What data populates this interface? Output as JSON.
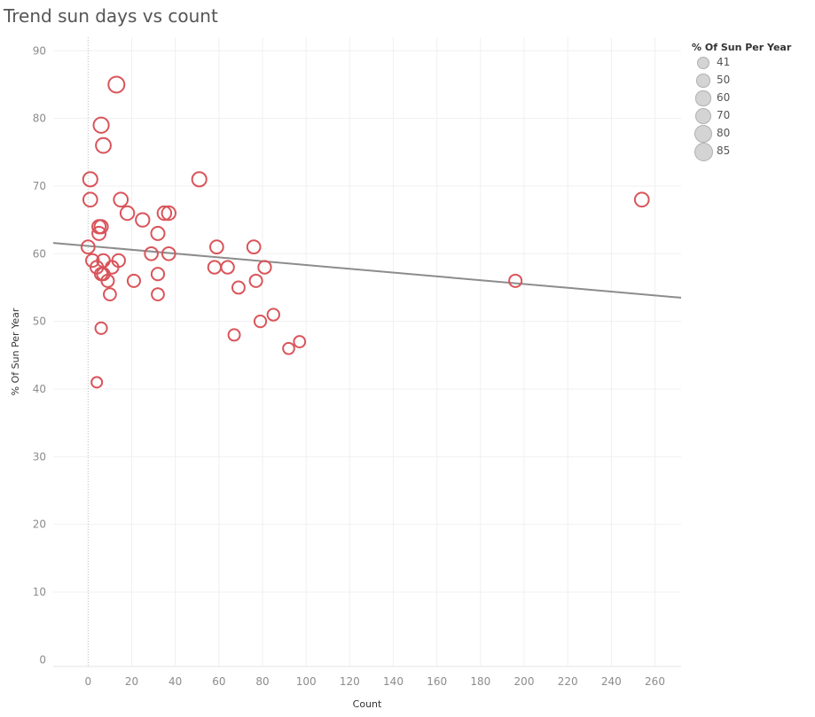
{
  "title": "Trend sun days vs count",
  "chart_data": {
    "type": "scatter",
    "title": "Trend sun days vs count",
    "xlabel": "Count",
    "ylabel": "% Of Sun Per Year",
    "xlim": [
      -16,
      272
    ],
    "ylim": [
      -1,
      92
    ],
    "xticks": [
      0,
      20,
      40,
      60,
      80,
      100,
      120,
      140,
      160,
      180,
      200,
      220,
      240,
      260
    ],
    "yticks": [
      0,
      10,
      20,
      30,
      40,
      50,
      60,
      70,
      80,
      90
    ],
    "grid": true,
    "legend_position": "top-right",
    "points": [
      {
        "x": 13,
        "y": 85
      },
      {
        "x": 6,
        "y": 79
      },
      {
        "x": 7,
        "y": 76
      },
      {
        "x": 1,
        "y": 71
      },
      {
        "x": 51,
        "y": 71
      },
      {
        "x": 1,
        "y": 68
      },
      {
        "x": 15,
        "y": 68
      },
      {
        "x": 254,
        "y": 68
      },
      {
        "x": 18,
        "y": 66
      },
      {
        "x": 35,
        "y": 66
      },
      {
        "x": 37,
        "y": 66
      },
      {
        "x": 25,
        "y": 65
      },
      {
        "x": 5,
        "y": 64
      },
      {
        "x": 6,
        "y": 64
      },
      {
        "x": 5,
        "y": 63
      },
      {
        "x": 32,
        "y": 63
      },
      {
        "x": 0,
        "y": 61
      },
      {
        "x": 59,
        "y": 61
      },
      {
        "x": 76,
        "y": 61
      },
      {
        "x": 29,
        "y": 60
      },
      {
        "x": 37,
        "y": 60
      },
      {
        "x": 2,
        "y": 59
      },
      {
        "x": 7,
        "y": 59
      },
      {
        "x": 14,
        "y": 59
      },
      {
        "x": 4,
        "y": 58
      },
      {
        "x": 11,
        "y": 58
      },
      {
        "x": 58,
        "y": 58
      },
      {
        "x": 64,
        "y": 58
      },
      {
        "x": 81,
        "y": 58
      },
      {
        "x": 6,
        "y": 57
      },
      {
        "x": 7,
        "y": 57
      },
      {
        "x": 32,
        "y": 57
      },
      {
        "x": 9,
        "y": 56
      },
      {
        "x": 21,
        "y": 56
      },
      {
        "x": 77,
        "y": 56
      },
      {
        "x": 196,
        "y": 56
      },
      {
        "x": 69,
        "y": 55
      },
      {
        "x": 10,
        "y": 54
      },
      {
        "x": 32,
        "y": 54
      },
      {
        "x": 85,
        "y": 51
      },
      {
        "x": 79,
        "y": 50
      },
      {
        "x": 6,
        "y": 49
      },
      {
        "x": 67,
        "y": 48
      },
      {
        "x": 97,
        "y": 47
      },
      {
        "x": 92,
        "y": 46
      },
      {
        "x": 4,
        "y": 41
      }
    ],
    "trend_line": {
      "x": [
        -16,
        272
      ],
      "y": [
        61.6,
        53.5
      ]
    },
    "size_legend": {
      "title": "% Of Sun Per Year",
      "entries": [
        "41",
        "50",
        "60",
        "70",
        "80",
        "85"
      ],
      "values": [
        41,
        50,
        60,
        70,
        80,
        85
      ]
    }
  },
  "colors": {
    "marker": "#d9545a",
    "trend": "#8c8c8c",
    "grid": "#f0f0f0",
    "zero_line": "#bbbbbb",
    "legend_fill": "#d4d4d4",
    "legend_stroke": "#b0b0b0"
  }
}
